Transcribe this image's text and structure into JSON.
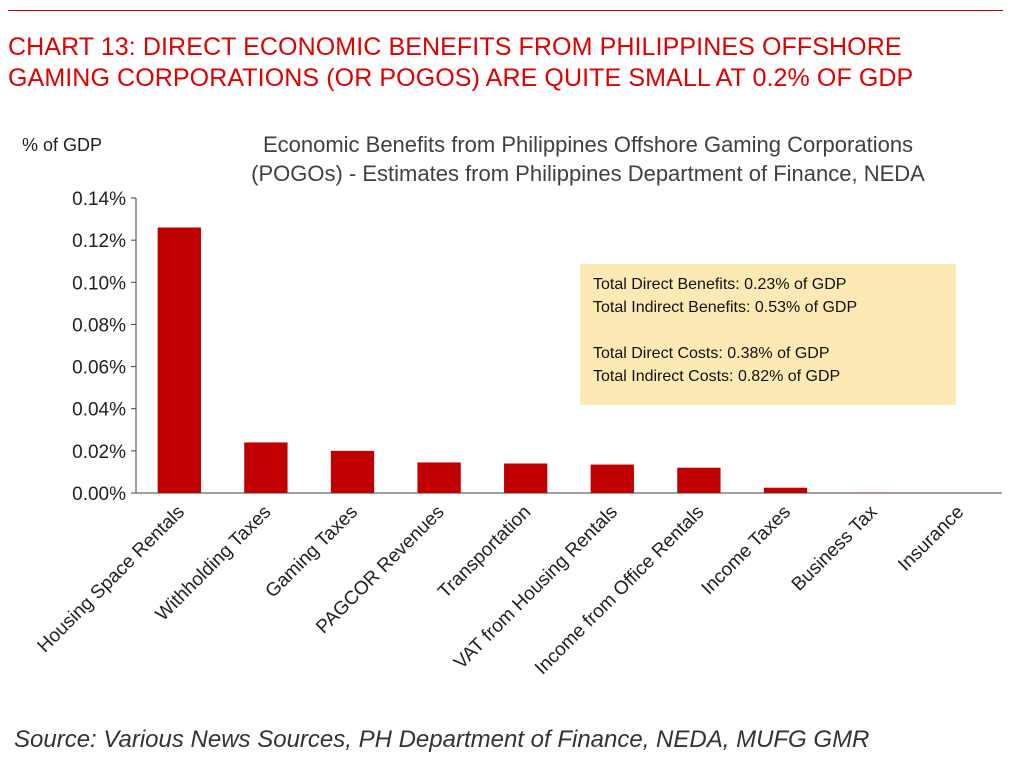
{
  "heading": {
    "line1": "CHART 13: DIRECT ECONOMIC BENEFITS FROM PHILIPPINES OFFSHORE",
    "line2": "GAMING CORPORATIONS (OR POGOS) ARE QUITE SMALL AT 0.2% OF GDP"
  },
  "source": "Source: Various News Sources, PH Department of Finance, NEDA, MUFG GMR",
  "colors": {
    "accent": "#e00000",
    "bar": "#c00000",
    "annotation_bg": "#fde9b4"
  },
  "chart_data": {
    "type": "bar",
    "title_lines": [
      "Economic Benefits from Philippines Offshore Gaming Corporations",
      "(POGOs) - Estimates from Philippines Department of Finance, NEDA"
    ],
    "ylabel": "% of GDP",
    "xlabel": "",
    "ylim": [
      0,
      0.14
    ],
    "yticks": [
      "0.00%",
      "0.02%",
      "0.04%",
      "0.06%",
      "0.08%",
      "0.10%",
      "0.12%",
      "0.14%"
    ],
    "categories": [
      "Housing Space Rentals",
      "Withholding Taxes",
      "Gaming Taxes",
      "PAGCOR Revenues",
      "Transportation",
      "VAT from Housing Rentals",
      "Income from Office Rentals",
      "Income Taxes",
      "Business Tax",
      "Insurance"
    ],
    "values": [
      0.126,
      0.024,
      0.02,
      0.0145,
      0.014,
      0.0135,
      0.012,
      0.0025,
      0.0001,
      0.0
    ],
    "grid": false,
    "annotation": [
      "Total Direct Benefits: 0.23% of GDP",
      "Total Indirect Benefits: 0.53% of GDP",
      "",
      "Total Direct Costs: 0.38% of GDP",
      "Total Indirect Costs: 0.82% of GDP"
    ]
  }
}
